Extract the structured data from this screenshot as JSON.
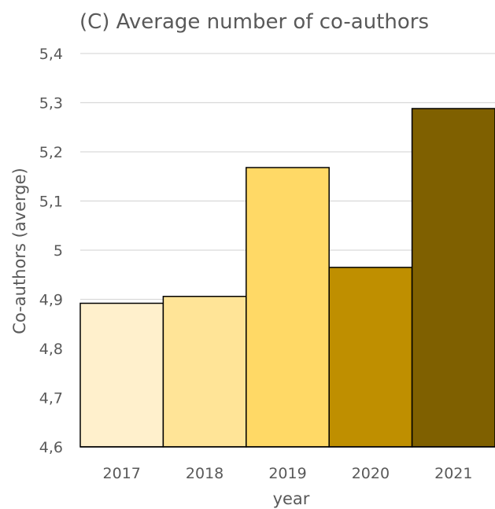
{
  "chart_data": {
    "type": "bar",
    "title": "(C) Average number of co-authors",
    "xlabel": "year",
    "ylabel": "Co-authors (averge)",
    "categories": [
      "2017",
      "2018",
      "2019",
      "2020",
      "2021"
    ],
    "values": [
      4.892,
      4.906,
      5.168,
      4.965,
      5.288
    ],
    "colors": [
      "#fff0cc",
      "#ffe497",
      "#ffd966",
      "#bf8f00",
      "#7f6000"
    ],
    "ylim": [
      4.6,
      5.4
    ],
    "yticks": [
      "4,6",
      "4,7",
      "4,8",
      "4,9",
      "5",
      "5,1",
      "5,2",
      "5,3",
      "5,4"
    ],
    "grid": true,
    "legend": "none"
  }
}
